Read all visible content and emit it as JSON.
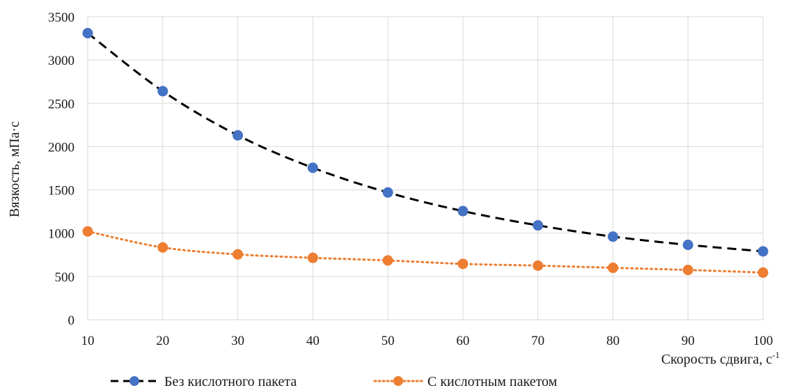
{
  "chart_data": {
    "type": "line",
    "x": [
      10,
      20,
      30,
      40,
      50,
      60,
      70,
      80,
      90,
      100
    ],
    "xlabel_main": "Скорость сдвига, с",
    "xlabel_sup": "-1",
    "ylabel": "Вязкость, мПа·с",
    "xlim": [
      10,
      100
    ],
    "ylim": [
      0,
      3500
    ],
    "xticks": [
      10,
      20,
      30,
      40,
      50,
      60,
      70,
      80,
      90,
      100
    ],
    "yticks": [
      0,
      500,
      1000,
      1500,
      2000,
      2500,
      3000,
      3500
    ],
    "grid": "vertical and horizontal",
    "legend_position": "bottom",
    "series": [
      {
        "name": "Без кислотного пакета",
        "values": [
          3310,
          2640,
          2130,
          1755,
          1470,
          1255,
          1090,
          960,
          865,
          790
        ],
        "marker_color": "#4472c4",
        "line_color": "#000000",
        "line_style": "dashed"
      },
      {
        "name": "С кислотным пакетом",
        "values": [
          1020,
          835,
          755,
          715,
          685,
          645,
          625,
          600,
          575,
          545
        ],
        "marker_color": "#ed7d31",
        "line_color": "#ed7d31",
        "line_style": "dotted"
      }
    ]
  }
}
